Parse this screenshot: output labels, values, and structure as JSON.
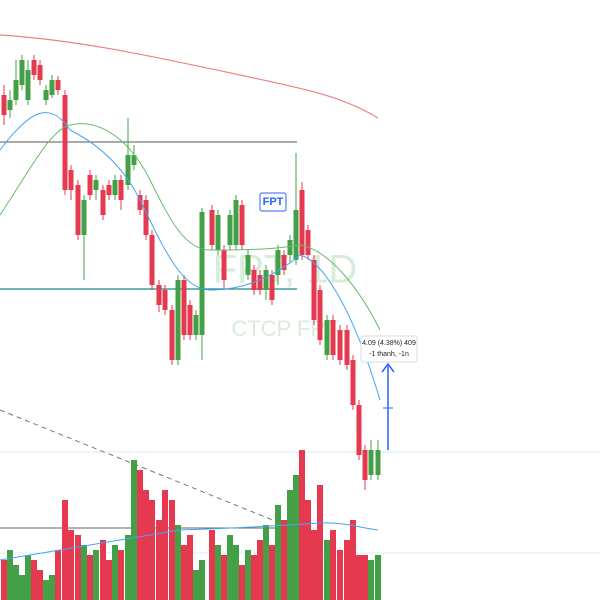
{
  "symbol_badge": "FPT",
  "watermark": {
    "symbol": "FPT, 1D",
    "company": "CTCP FPT"
  },
  "measure_tooltip": {
    "line1": "4.09 (4.38%) 409",
    "line2": "-1 thanh, -1n"
  }
}
